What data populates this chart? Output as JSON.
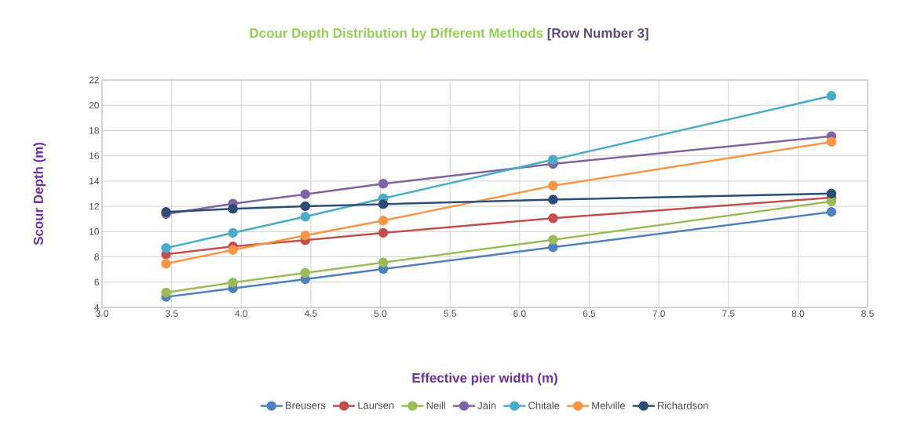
{
  "chart_data": {
    "type": "line",
    "title": "Dcour Depth Distribution by Different Methods",
    "subtitle": "[Row Number 3]",
    "xlabel": "Effective pier width (m)",
    "ylabel": "Scour Depth (m)",
    "x": [
      3.46,
      3.94,
      4.46,
      5.02,
      6.24,
      8.24
    ],
    "series": [
      {
        "name": "Breusers",
        "color": "#4f81bd",
        "values": [
          4.83,
          5.51,
          6.23,
          7.04,
          8.76,
          11.56
        ]
      },
      {
        "name": "Laursen",
        "color": "#c0504d",
        "values": [
          8.2,
          8.82,
          9.32,
          9.9,
          11.06,
          12.69
        ]
      },
      {
        "name": "Neill",
        "color": "#9bbb59",
        "values": [
          5.18,
          5.97,
          6.73,
          7.56,
          9.36,
          12.39
        ]
      },
      {
        "name": "Jain",
        "color": "#8064a2",
        "values": [
          11.39,
          12.21,
          12.96,
          13.79,
          15.36,
          17.55
        ]
      },
      {
        "name": "Chitale",
        "color": "#4bacc6",
        "values": [
          8.7,
          9.9,
          11.18,
          12.63,
          15.7,
          20.74
        ]
      },
      {
        "name": "Melville",
        "color": "#f79646",
        "values": [
          7.46,
          8.55,
          9.69,
          10.87,
          13.63,
          17.1
        ]
      },
      {
        "name": "Richardson",
        "color": "#2c4d75",
        "values": [
          11.55,
          11.8,
          12.01,
          12.17,
          12.53,
          13.01
        ]
      }
    ],
    "xlim": [
      3.0,
      8.5
    ],
    "xticks": [
      {
        "value": 3.0,
        "label": "3.0"
      },
      {
        "value": 3.5,
        "label": "3.5"
      },
      {
        "value": 4.0,
        "label": "4.0"
      },
      {
        "value": 4.5,
        "label": "4.5"
      },
      {
        "value": 5.0,
        "label": "5.0"
      },
      {
        "value": 5.5,
        "label": "5.5"
      },
      {
        "value": 6.0,
        "label": "6.0"
      },
      {
        "value": 6.5,
        "label": "6.5"
      },
      {
        "value": 7.0,
        "label": "7.0"
      },
      {
        "value": 7.5,
        "label": "7.5"
      },
      {
        "value": 8.0,
        "label": "8.0"
      },
      {
        "value": 8.5,
        "label": "8.5"
      }
    ],
    "ylim": [
      4,
      22
    ],
    "yticks": [
      4,
      6,
      8,
      10,
      12,
      14,
      16,
      18,
      20,
      22
    ],
    "grid": true,
    "legend": "bottom",
    "marker": "circle",
    "line_style": "solid"
  }
}
